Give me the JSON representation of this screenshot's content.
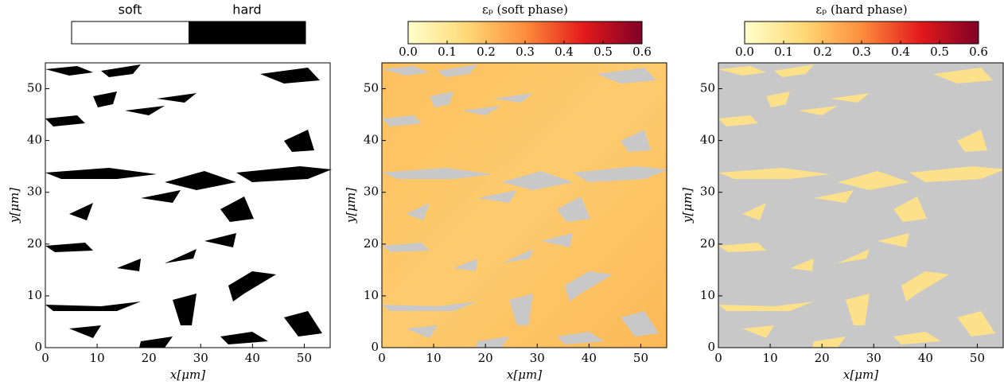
{
  "chart_data": [
    {
      "type": "phase-map",
      "xlabel": "x[μm]",
      "ylabel": "y[μm]",
      "xlim": [
        0,
        55
      ],
      "ylim": [
        0,
        55
      ],
      "xticks": [
        0,
        10,
        20,
        30,
        40,
        50
      ],
      "yticks": [
        0,
        10,
        20,
        30,
        40,
        50
      ],
      "legend": {
        "labels": [
          "soft",
          "hard"
        ],
        "colors": [
          "#ffffff",
          "#000000"
        ]
      }
    },
    {
      "type": "strain-map",
      "xlabel": "x[μm]",
      "ylabel": "y[μm]",
      "xlim": [
        0,
        55
      ],
      "ylim": [
        0,
        55
      ],
      "xticks": [
        0,
        10,
        20,
        30,
        40,
        50
      ],
      "yticks": [
        0,
        10,
        20,
        30,
        40,
        50
      ],
      "colorbar": {
        "label": "εₚ (soft phase)",
        "lim": [
          0,
          0.6
        ],
        "ticks": [
          {
            "value": 0,
            "label": "0.0"
          },
          0.1,
          0.2,
          0.3,
          0.4,
          0.5,
          0.6
        ],
        "colors": [
          "#ffffcc",
          "#fed976",
          "#fd8d3c",
          "#e31a1c",
          "#800026"
        ]
      }
    },
    {
      "type": "strain-map",
      "xlabel": "x[μm]",
      "ylabel": "y[μm]",
      "xlim": [
        0,
        55
      ],
      "ylim": [
        0,
        55
      ],
      "xticks": [
        0,
        10,
        20,
        30,
        40,
        50
      ],
      "yticks": [
        0,
        10,
        20,
        30,
        40,
        50
      ],
      "colorbar": {
        "label": "εₚ (hard phase)",
        "lim": [
          0,
          0.6
        ],
        "ticks": [
          {
            "value": 0,
            "label": "0.0"
          },
          0.1,
          0.2,
          0.3,
          0.4,
          0.5,
          0.6
        ],
        "colors": [
          "#ffffcc",
          "#fed976",
          "#fd8d3c",
          "#e31a1c",
          "#800026"
        ]
      }
    }
  ]
}
